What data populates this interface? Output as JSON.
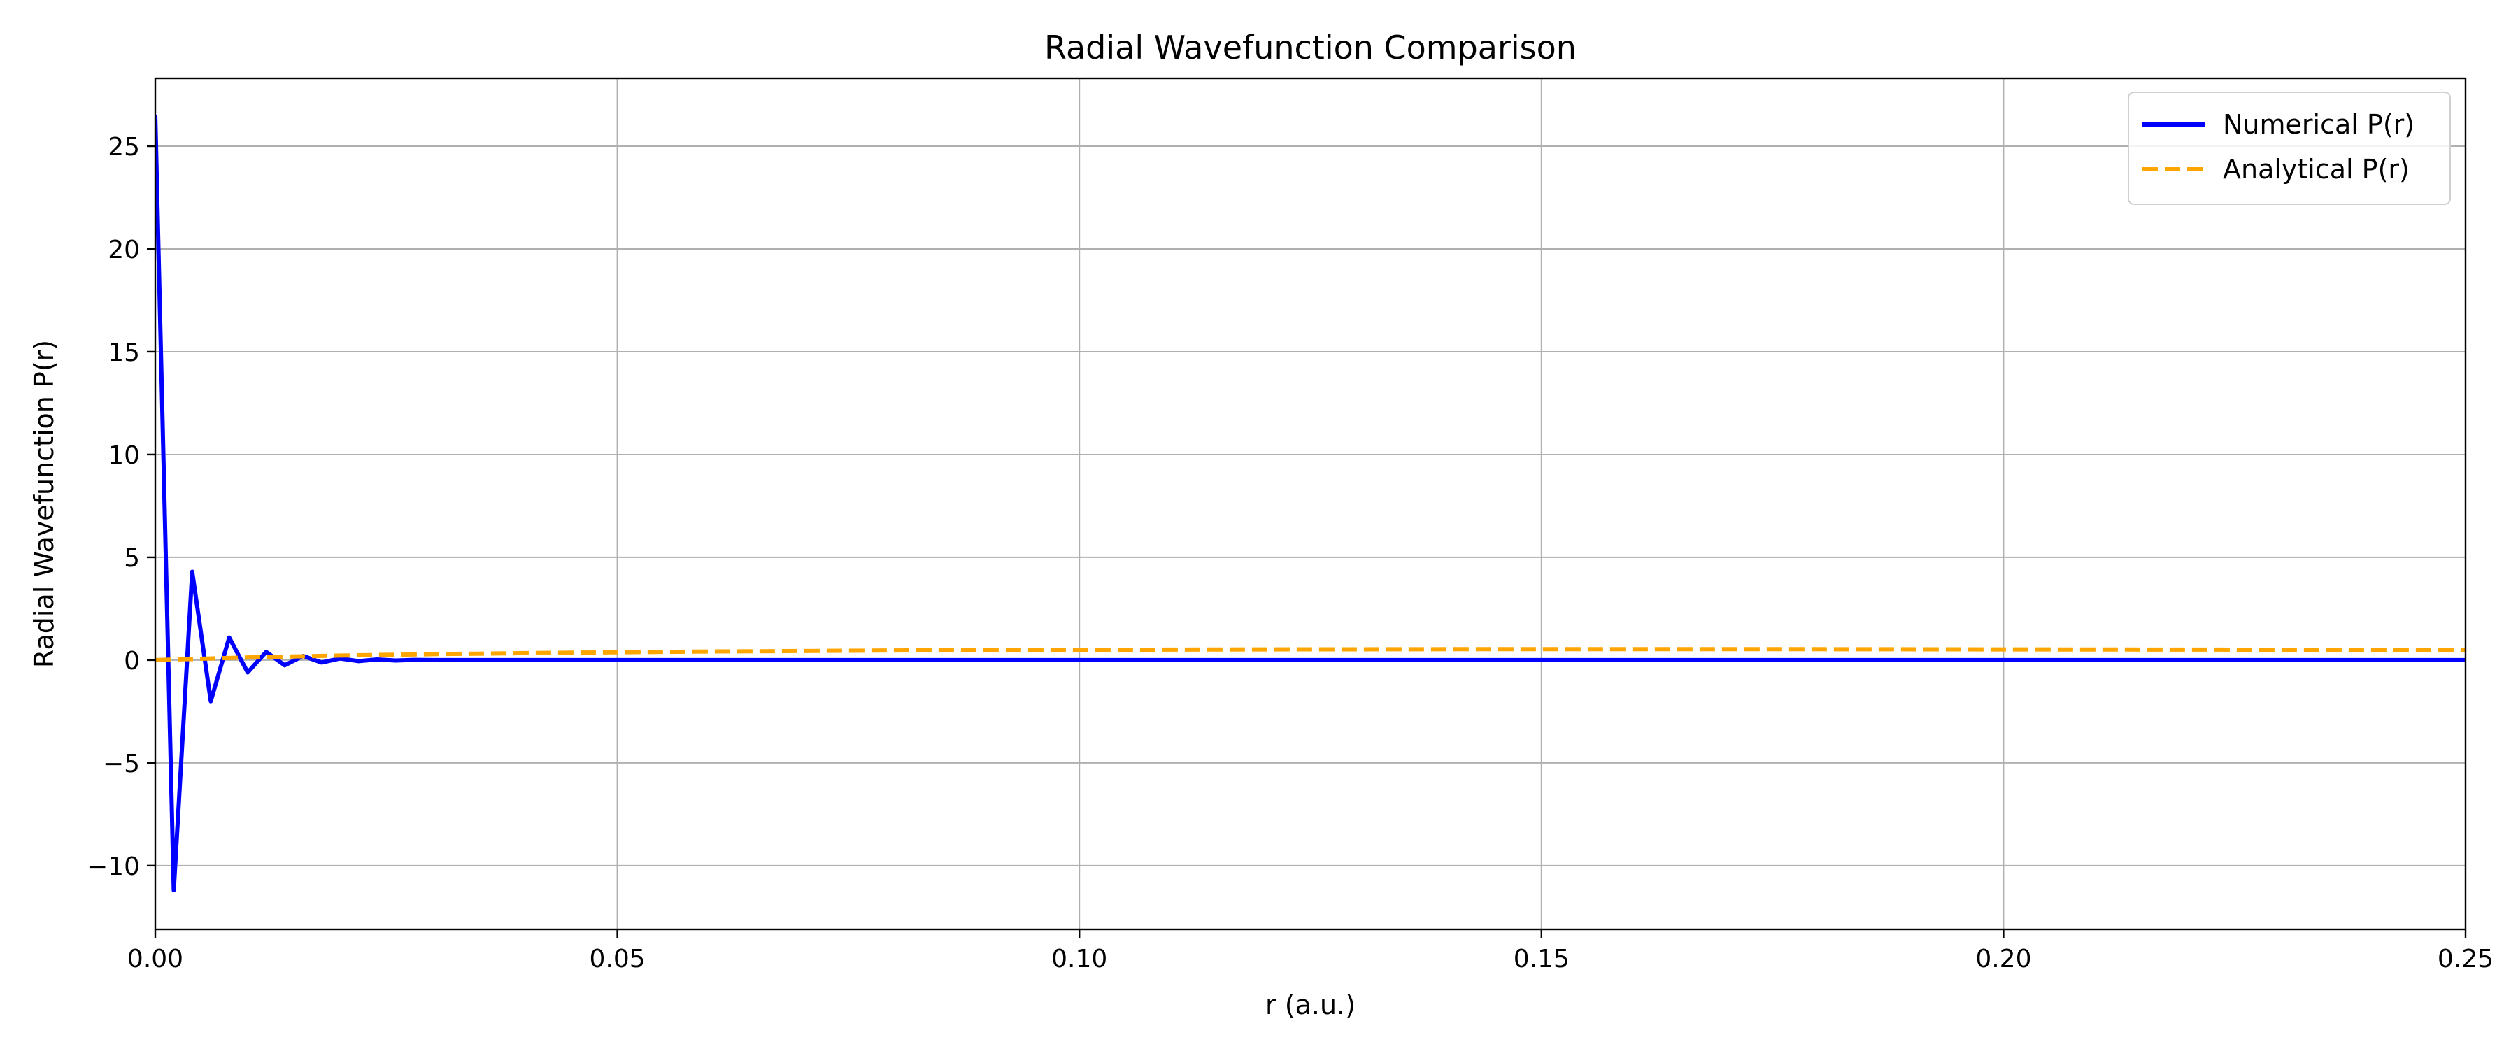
{
  "chart_data": {
    "type": "line",
    "title": "Radial Wavefunction Comparison",
    "xlabel": "r (a.u.)",
    "ylabel": "Radial Wavefunction P(r)",
    "xlim": [
      0,
      0.25
    ],
    "ylim": [
      -13.1,
      28.3
    ],
    "x_ticks": [
      0.0,
      0.05,
      0.1,
      0.15,
      0.2,
      0.25
    ],
    "x_tick_labels": [
      "0.00",
      "0.05",
      "0.10",
      "0.15",
      "0.20",
      "0.25"
    ],
    "y_ticks": [
      -10,
      -5,
      0,
      5,
      10,
      15,
      20,
      25
    ],
    "y_tick_labels": [
      "−10",
      "−5",
      "0",
      "5",
      "10",
      "15",
      "20",
      "25"
    ],
    "grid": true,
    "legend_position": "top-right",
    "series": [
      {
        "name": "Numerical P(r)",
        "color": "#0000ff",
        "style": "solid",
        "x": [
          0.0,
          0.002,
          0.004,
          0.006,
          0.008,
          0.01,
          0.012,
          0.014,
          0.016,
          0.018,
          0.02,
          0.022,
          0.024,
          0.026,
          0.028,
          0.03,
          0.05,
          0.1,
          0.15,
          0.2,
          0.25
        ],
        "y": [
          26.5,
          -11.2,
          4.3,
          -2.0,
          1.1,
          -0.6,
          0.4,
          -0.25,
          0.2,
          -0.12,
          0.08,
          -0.05,
          0.03,
          -0.02,
          0.01,
          0.0,
          0.0,
          0.0,
          0.0,
          0.0,
          0.0
        ]
      },
      {
        "name": "Analytical P(r)",
        "color": "#ffa500",
        "style": "dashed",
        "x": [
          0.0,
          0.01,
          0.02,
          0.03,
          0.04,
          0.05,
          0.06,
          0.08,
          0.1,
          0.12,
          0.14,
          0.15,
          0.16,
          0.18,
          0.2,
          0.22,
          0.25
        ],
        "y": [
          0.0,
          0.13,
          0.22,
          0.29,
          0.34,
          0.38,
          0.42,
          0.47,
          0.5,
          0.52,
          0.53,
          0.53,
          0.53,
          0.53,
          0.52,
          0.51,
          0.5
        ]
      }
    ]
  }
}
